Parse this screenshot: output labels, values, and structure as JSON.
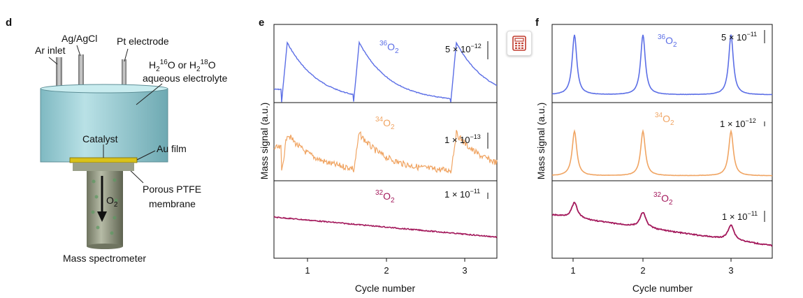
{
  "panel_d": {
    "label": "d",
    "ar_inlet": "Ar inlet",
    "ag_agcl": "Ag/AgCl",
    "pt_electrode": "Pt electrode",
    "electrolyte_line1_a": "H",
    "electrolyte_line1_sub1": "2",
    "electrolyte_line1_sup1": "16",
    "electrolyte_line1_b": "O or H",
    "electrolyte_line1_sub2": "2",
    "electrolyte_line1_sup2": "18",
    "electrolyte_line1_c": "O",
    "electrolyte_line2": "aqueous electrolyte",
    "catalyst": "Catalyst",
    "au_film": "Au film",
    "ptfe_line1": "Porous PTFE",
    "ptfe_line2": "membrane",
    "o2_main": "O",
    "o2_sub": "2",
    "mass_spec": "Mass spectrometer"
  },
  "panel_e": {
    "label": "e",
    "ylabel": "Mass signal (a.u.)",
    "xlabel": "Cycle number",
    "x_ticks": [
      "1",
      "2",
      "3"
    ],
    "species": [
      {
        "sup": "36",
        "main": "O",
        "sub": "2",
        "color": "#5b6ee6"
      },
      {
        "sup": "34",
        "main": "O",
        "sub": "2",
        "color": "#f0a462"
      },
      {
        "sup": "32",
        "main": "O",
        "sub": "2",
        "color": "#a3185b"
      }
    ],
    "scale_bars": [
      {
        "pre": "5 × 10",
        "exp": "−12"
      },
      {
        "pre": "1 × 10",
        "exp": "−13"
      },
      {
        "pre": "1 × 10",
        "exp": "−11"
      }
    ]
  },
  "panel_f": {
    "label": "f",
    "ylabel": "Mass signal (a.u.)",
    "xlabel": "Cycle number",
    "x_ticks": [
      "1",
      "2",
      "3"
    ],
    "species": [
      {
        "sup": "36",
        "main": "O",
        "sub": "2",
        "color": "#5b6ee6"
      },
      {
        "sup": "34",
        "main": "O",
        "sub": "2",
        "color": "#f0a462"
      },
      {
        "sup": "32",
        "main": "O",
        "sub": "2",
        "color": "#a3185b"
      }
    ],
    "scale_bars": [
      {
        "pre": "5 × 10",
        "exp": "−11"
      },
      {
        "pre": "1 × 10",
        "exp": "−12"
      },
      {
        "pre": "1 × 10",
        "exp": "−11"
      }
    ]
  },
  "toolbar": {
    "icon": "calculator-icon"
  }
}
